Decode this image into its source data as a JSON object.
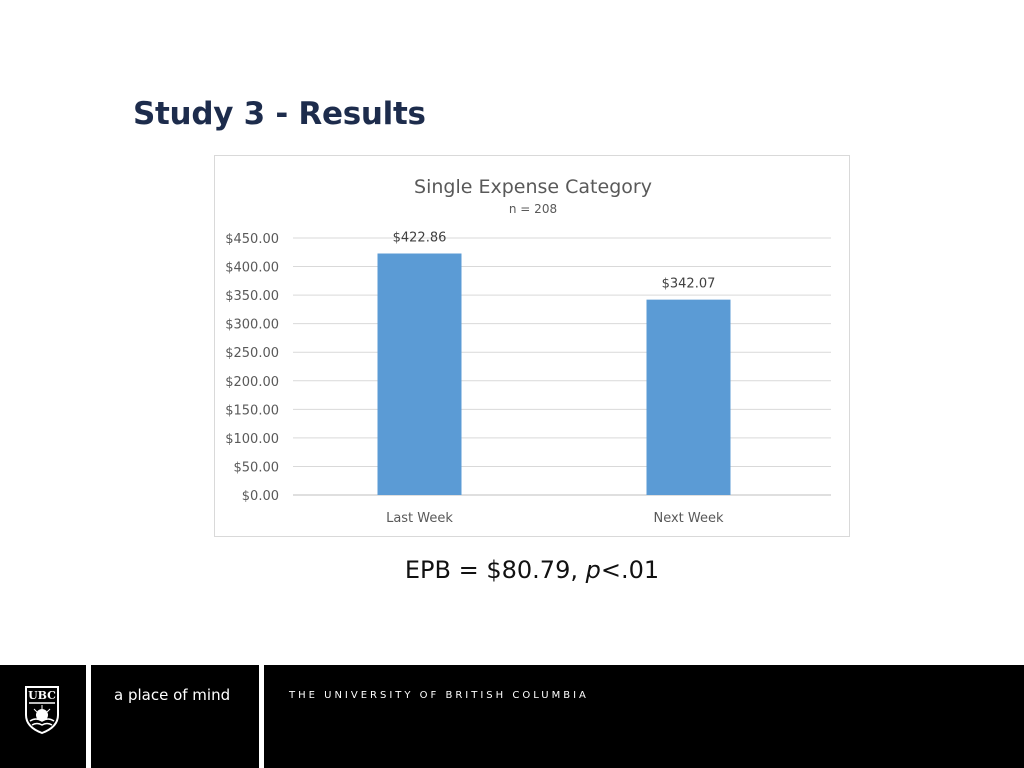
{
  "slide": {
    "title": "Study 3 - Results",
    "caption_prefix": "EPB = $80.79, ",
    "caption_p": "p",
    "caption_suffix": "<.01"
  },
  "chart_data": {
    "type": "bar",
    "title": "Single Expense Category",
    "subtitle": "n = 208",
    "categories": [
      "Last Week",
      "Next Week"
    ],
    "values": [
      422.86,
      342.07
    ],
    "data_labels": [
      "$422.86",
      "$342.07"
    ],
    "ylim": [
      0,
      450
    ],
    "ytick_labels": [
      "$0.00",
      "$50.00",
      "$100.00",
      "$150.00",
      "$200.00",
      "$250.00",
      "$300.00",
      "$350.00",
      "$400.00",
      "$450.00"
    ],
    "xlabel": "",
    "ylabel": "",
    "grid": true,
    "bar_color": "#5b9bd5"
  },
  "footer": {
    "logo_text": "UBC",
    "tagline": "a place of mind",
    "university": "THE UNIVERSITY OF BRITISH COLUMBIA"
  }
}
